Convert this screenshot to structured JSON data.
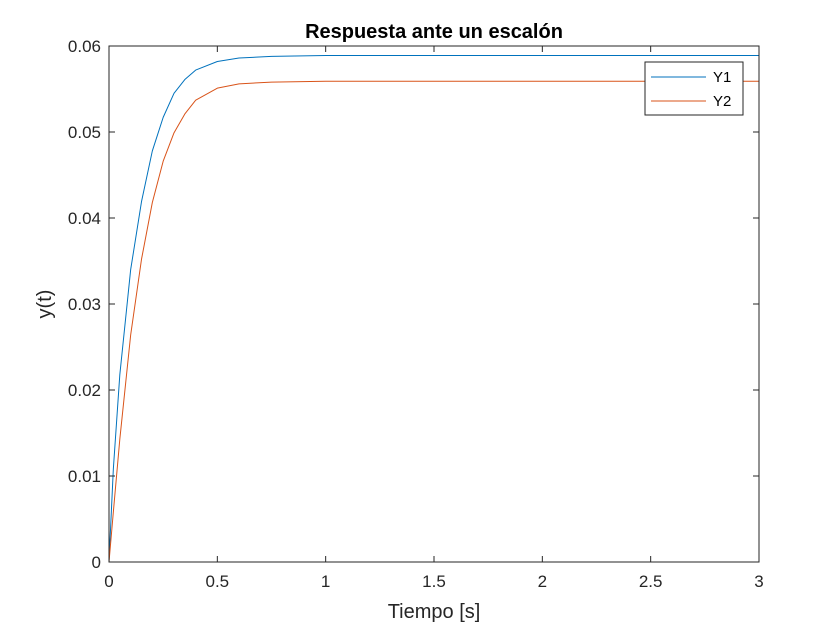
{
  "chart_data": {
    "type": "line",
    "title": "Respuesta ante un escalón",
    "xlabel": "Tiempo [s]",
    "ylabel": "y(t)",
    "xlim": [
      0,
      3
    ],
    "ylim": [
      0,
      0.06
    ],
    "x_ticks": [
      "0",
      "0.5",
      "1",
      "1.5",
      "2",
      "2.5",
      "3"
    ],
    "y_ticks": [
      "0",
      "0.01",
      "0.02",
      "0.03",
      "0.04",
      "0.05",
      "0.06"
    ],
    "grid": false,
    "legend_position": "top-right",
    "series": [
      {
        "name": "Y1",
        "color": "#0072BD",
        "points": [
          [
            0,
            0
          ],
          [
            0.02,
            0.0108
          ],
          [
            0.05,
            0.0218
          ],
          [
            0.1,
            0.034
          ],
          [
            0.15,
            0.0419
          ],
          [
            0.2,
            0.0478
          ],
          [
            0.25,
            0.0517
          ],
          [
            0.3,
            0.0545
          ],
          [
            0.35,
            0.0561
          ],
          [
            0.4,
            0.0572
          ],
          [
            0.5,
            0.0582
          ],
          [
            0.6,
            0.0586
          ],
          [
            0.75,
            0.0588
          ],
          [
            1.0,
            0.0589
          ],
          [
            1.5,
            0.0589
          ],
          [
            2.0,
            0.0589
          ],
          [
            2.5,
            0.0589
          ],
          [
            3.0,
            0.0589
          ]
        ]
      },
      {
        "name": "Y2",
        "color": "#D95319",
        "points": [
          [
            0,
            0
          ],
          [
            0.02,
            0.0058
          ],
          [
            0.05,
            0.0143
          ],
          [
            0.1,
            0.0264
          ],
          [
            0.15,
            0.0352
          ],
          [
            0.2,
            0.0418
          ],
          [
            0.25,
            0.0466
          ],
          [
            0.3,
            0.0499
          ],
          [
            0.35,
            0.0521
          ],
          [
            0.4,
            0.0537
          ],
          [
            0.5,
            0.0551
          ],
          [
            0.6,
            0.0556
          ],
          [
            0.75,
            0.0558
          ],
          [
            1.0,
            0.0559
          ],
          [
            1.5,
            0.0559
          ],
          [
            2.0,
            0.0559
          ],
          [
            2.5,
            0.0559
          ],
          [
            3.0,
            0.0559
          ]
        ]
      }
    ]
  }
}
